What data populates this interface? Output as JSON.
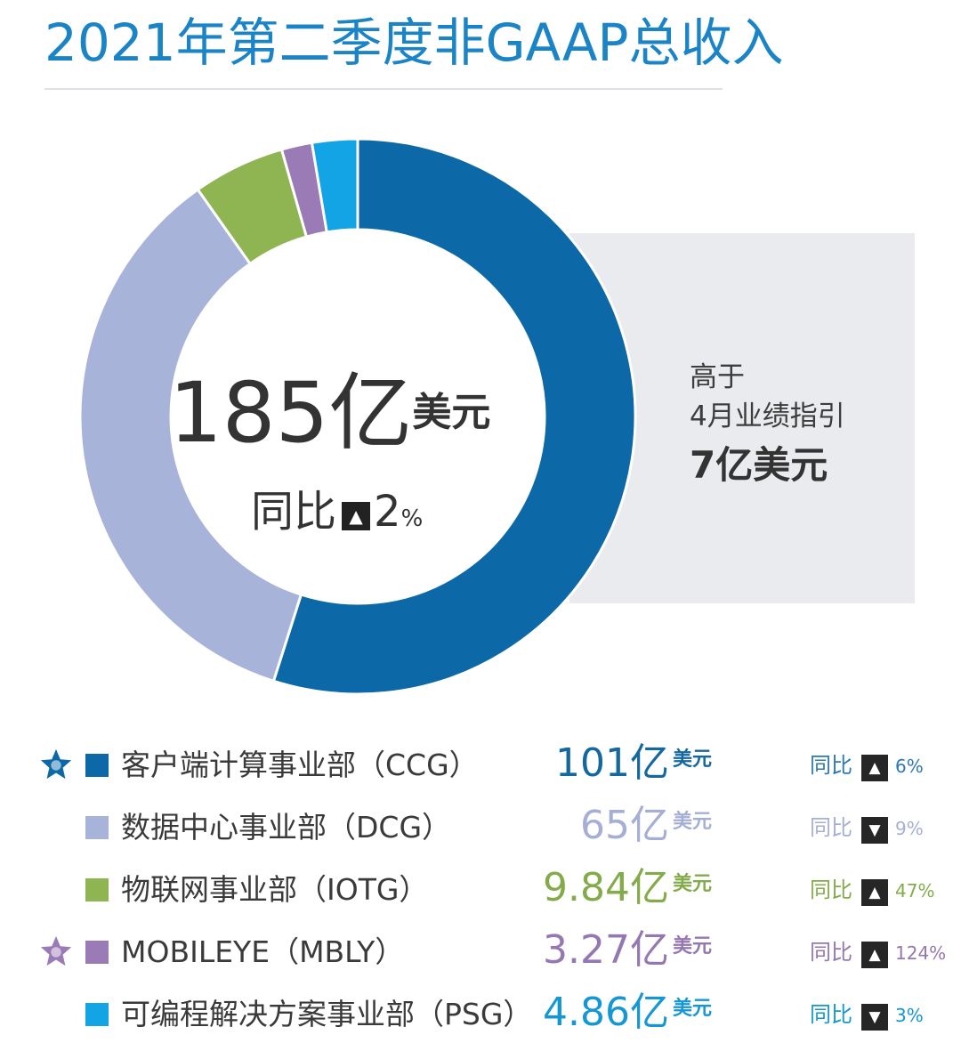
{
  "title": "2021年第二季度非GAAP总收入",
  "center": {
    "value": "185亿",
    "unit": "美元",
    "yoy_label": "同比",
    "yoy_arrow": "▲",
    "yoy_number": "2",
    "yoy_percent_sign": "%"
  },
  "info_box": {
    "line1": "高于",
    "line2": "4月业绩指引",
    "line3": "7亿美元",
    "background": "#e9ebee"
  },
  "colors": {
    "title": "#1b84c6",
    "CCG": "#0d68a8",
    "DCG": "#a8b3d9",
    "IOTG": "#8fb553",
    "MBLY": "#9a7bb5",
    "PSG": "#12a4e4"
  },
  "chart_data": {
    "type": "pie",
    "variant": "donut",
    "title": "2021年第二季度非GAAP总收入",
    "unit": "亿美元",
    "total": 185,
    "categories": [
      "CCG",
      "DCG",
      "IOTG",
      "MBLY",
      "PSG"
    ],
    "values": [
      101,
      65,
      9.84,
      3.27,
      4.86
    ]
  },
  "legend": [
    {
      "key": "CCG",
      "starred": true,
      "star_icon": "star-icon",
      "name": "客户端计算事业部（CCG）",
      "value": "101亿",
      "unit": "美元",
      "yoy_label": "同比",
      "direction": "up",
      "arrow": "▲",
      "yoy_pct": "6%",
      "color": "#0d68a8",
      "text_color": "#15679f",
      "yoy_color": "#2e79b3"
    },
    {
      "key": "DCG",
      "starred": false,
      "name": "数据中心事业部（DCG）",
      "value": "65亿",
      "unit": "美元",
      "yoy_label": "同比",
      "direction": "down",
      "arrow": "▼",
      "yoy_pct": "9%",
      "color": "#a8b3d9",
      "text_color": "#a5afd6",
      "yoy_color": "#a5afd6"
    },
    {
      "key": "IOTG",
      "starred": false,
      "name": "物联网事业部（IOTG）",
      "value": "9.84亿",
      "unit": "美元",
      "yoy_label": "同比",
      "direction": "up",
      "arrow": "▲",
      "yoy_pct": "47%",
      "color": "#8fb553",
      "text_color": "#84ab49",
      "yoy_color": "#84ab49"
    },
    {
      "key": "MBLY",
      "starred": true,
      "star_icon": "star-icon",
      "name": "MOBILEYE（MBLY）",
      "value": "3.27亿",
      "unit": "美元",
      "yoy_label": "同比",
      "direction": "up",
      "arrow": "▲",
      "yoy_pct": "124%",
      "color": "#9a7bb5",
      "text_color": "#9577b1",
      "yoy_color": "#9577b1"
    },
    {
      "key": "PSG",
      "starred": false,
      "name": "可编程解决方案事业部（PSG）",
      "value": "4.86亿",
      "unit": "美元",
      "yoy_label": "同比",
      "direction": "down",
      "arrow": "▼",
      "yoy_pct": "3%",
      "color": "#12a4e4",
      "text_color": "#1597d4",
      "yoy_color": "#1597d4"
    }
  ]
}
